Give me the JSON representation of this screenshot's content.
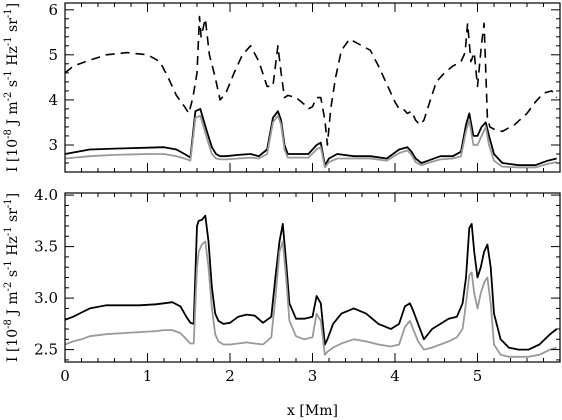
{
  "chart_data": [
    {
      "type": "line",
      "panel": "top",
      "xlabel": "",
      "ylabel": "I [10^-8 J m^-2 s^-1 Hz^-1 sr^-1]",
      "xlim": [
        0,
        6
      ],
      "ylim": [
        2.4,
        6.15
      ],
      "xticks": [
        0,
        1,
        2,
        3,
        4,
        5
      ],
      "xticks_labeled": false,
      "yticks": [
        3,
        4,
        5,
        6
      ],
      "grid": false,
      "series": [
        {
          "style": "dashed",
          "color": "#000000",
          "x": [
            0.0,
            0.1,
            0.25,
            0.5,
            0.75,
            1.0,
            1.15,
            1.25,
            1.35,
            1.45,
            1.5,
            1.55,
            1.6,
            1.63,
            1.65,
            1.7,
            1.75,
            1.82,
            1.88,
            1.95,
            2.05,
            2.15,
            2.25,
            2.35,
            2.45,
            2.52,
            2.58,
            2.62,
            2.66,
            2.7,
            2.8,
            2.9,
            2.95,
            3.0,
            3.05,
            3.1,
            3.15,
            3.18,
            3.22,
            3.28,
            3.35,
            3.45,
            3.55,
            3.7,
            3.8,
            3.9,
            4.0,
            4.05,
            4.1,
            4.15,
            4.2,
            4.25,
            4.3,
            4.35,
            4.42,
            4.5,
            4.6,
            4.7,
            4.8,
            4.85,
            4.88,
            4.92,
            4.96,
            5.0,
            5.05,
            5.08,
            5.12,
            5.15,
            5.2,
            5.3,
            5.45,
            5.6,
            5.7,
            5.8,
            5.9,
            5.96
          ],
          "values": [
            4.6,
            4.75,
            4.85,
            5.0,
            5.05,
            5.0,
            4.85,
            4.5,
            4.1,
            3.85,
            3.7,
            4.05,
            4.6,
            5.85,
            5.4,
            5.8,
            5.0,
            4.5,
            4.0,
            4.15,
            4.6,
            5.0,
            5.2,
            4.85,
            4.3,
            4.3,
            5.2,
            4.6,
            4.05,
            4.1,
            4.05,
            3.9,
            3.8,
            3.85,
            4.05,
            4.05,
            3.55,
            3.0,
            3.8,
            4.5,
            5.1,
            5.35,
            5.25,
            5.1,
            4.75,
            4.35,
            3.95,
            3.8,
            3.8,
            3.7,
            3.75,
            3.55,
            3.45,
            3.55,
            3.95,
            4.4,
            4.6,
            4.75,
            4.85,
            5.05,
            5.7,
            4.85,
            5.05,
            4.3,
            5.25,
            5.7,
            3.6,
            3.4,
            3.35,
            3.3,
            3.45,
            3.7,
            3.95,
            4.15,
            4.2,
            4.05
          ]
        },
        {
          "style": "solid",
          "color": "#000000",
          "x": [
            0.0,
            0.3,
            0.6,
            1.0,
            1.2,
            1.35,
            1.45,
            1.52,
            1.58,
            1.64,
            1.72,
            1.78,
            1.83,
            1.88,
            1.95,
            2.1,
            2.25,
            2.35,
            2.45,
            2.52,
            2.58,
            2.62,
            2.66,
            2.7,
            2.8,
            2.95,
            3.05,
            3.1,
            3.15,
            3.2,
            3.3,
            3.5,
            3.7,
            3.9,
            4.05,
            4.15,
            4.2,
            4.25,
            4.32,
            4.4,
            4.55,
            4.7,
            4.8,
            4.86,
            4.9,
            4.95,
            5.0,
            5.05,
            5.1,
            5.14,
            5.2,
            5.3,
            5.5,
            5.7,
            5.85,
            5.96
          ],
          "values": [
            2.8,
            2.9,
            2.92,
            2.94,
            2.95,
            2.9,
            2.8,
            2.72,
            3.75,
            3.8,
            3.3,
            2.95,
            2.8,
            2.75,
            2.75,
            2.78,
            2.8,
            2.75,
            2.9,
            3.6,
            3.75,
            3.55,
            3.0,
            2.8,
            2.8,
            2.8,
            3.0,
            3.05,
            2.55,
            2.7,
            2.8,
            2.75,
            2.75,
            2.7,
            2.9,
            2.95,
            2.85,
            2.7,
            2.6,
            2.65,
            2.75,
            2.75,
            2.85,
            3.45,
            3.7,
            3.2,
            3.2,
            3.4,
            3.5,
            3.2,
            2.8,
            2.6,
            2.55,
            2.55,
            2.65,
            2.7
          ]
        },
        {
          "style": "solid",
          "color": "#999999",
          "x": [
            0.0,
            0.3,
            0.6,
            1.0,
            1.2,
            1.35,
            1.45,
            1.52,
            1.58,
            1.64,
            1.72,
            1.78,
            1.83,
            1.88,
            1.95,
            2.1,
            2.25,
            2.35,
            2.45,
            2.52,
            2.58,
            2.62,
            2.66,
            2.7,
            2.8,
            2.95,
            3.05,
            3.1,
            3.15,
            3.2,
            3.3,
            3.5,
            3.7,
            3.9,
            4.05,
            4.15,
            4.2,
            4.25,
            4.32,
            4.4,
            4.55,
            4.7,
            4.8,
            4.86,
            4.9,
            4.95,
            5.0,
            5.05,
            5.1,
            5.14,
            5.2,
            5.3,
            5.5,
            5.7,
            5.85,
            5.96
          ],
          "values": [
            2.7,
            2.75,
            2.78,
            2.8,
            2.8,
            2.75,
            2.7,
            2.65,
            3.6,
            3.65,
            3.15,
            2.8,
            2.7,
            2.68,
            2.68,
            2.7,
            2.72,
            2.7,
            2.8,
            3.5,
            3.65,
            3.45,
            2.9,
            2.72,
            2.72,
            2.72,
            2.9,
            2.95,
            2.5,
            2.62,
            2.7,
            2.7,
            2.7,
            2.65,
            2.82,
            2.88,
            2.78,
            2.62,
            2.55,
            2.6,
            2.68,
            2.7,
            2.75,
            3.3,
            3.55,
            3.0,
            3.0,
            3.2,
            3.4,
            3.0,
            2.65,
            2.52,
            2.5,
            2.5,
            2.58,
            2.62
          ]
        }
      ]
    },
    {
      "type": "line",
      "panel": "bottom",
      "xlabel": "x [Mm]",
      "ylabel": "I [10^-8 J m^-2 s^-1 Hz^-1 sr^-1]",
      "xlim": [
        0,
        6
      ],
      "ylim": [
        2.38,
        4.02
      ],
      "xticks": [
        0,
        1,
        2,
        3,
        4,
        5
      ],
      "xticks_labeled": true,
      "yticks": [
        2.5,
        3.0,
        3.5,
        4.0
      ],
      "grid": false,
      "series": [
        {
          "style": "solid",
          "color": "#000000",
          "x": [
            0.0,
            0.1,
            0.2,
            0.3,
            0.5,
            0.7,
            0.9,
            1.1,
            1.2,
            1.3,
            1.4,
            1.47,
            1.52,
            1.56,
            1.6,
            1.62,
            1.66,
            1.7,
            1.74,
            1.78,
            1.82,
            1.86,
            1.92,
            2.0,
            2.1,
            2.2,
            2.3,
            2.4,
            2.5,
            2.55,
            2.6,
            2.64,
            2.68,
            2.72,
            2.8,
            2.9,
            3.0,
            3.05,
            3.1,
            3.15,
            3.18,
            3.25,
            3.35,
            3.5,
            3.65,
            3.8,
            3.95,
            4.05,
            4.12,
            4.18,
            4.22,
            4.28,
            4.35,
            4.45,
            4.55,
            4.65,
            4.75,
            4.82,
            4.86,
            4.9,
            4.93,
            4.96,
            5.0,
            5.04,
            5.08,
            5.12,
            5.16,
            5.2,
            5.28,
            5.38,
            5.5,
            5.62,
            5.75,
            5.88,
            5.96
          ],
          "values": [
            2.79,
            2.82,
            2.86,
            2.9,
            2.93,
            2.93,
            2.93,
            2.94,
            2.95,
            2.96,
            2.92,
            2.82,
            2.76,
            2.75,
            3.7,
            3.75,
            3.76,
            3.8,
            3.55,
            3.1,
            2.85,
            2.78,
            2.75,
            2.76,
            2.82,
            2.84,
            2.83,
            2.76,
            2.82,
            3.2,
            3.55,
            3.72,
            3.35,
            2.95,
            2.8,
            2.8,
            2.82,
            3.02,
            2.95,
            2.55,
            2.6,
            2.75,
            2.85,
            2.9,
            2.85,
            2.75,
            2.7,
            2.75,
            2.92,
            2.95,
            2.88,
            2.75,
            2.6,
            2.7,
            2.75,
            2.8,
            2.82,
            2.95,
            3.2,
            3.68,
            3.72,
            3.45,
            3.2,
            3.3,
            3.45,
            3.52,
            3.3,
            2.85,
            2.6,
            2.52,
            2.5,
            2.5,
            2.55,
            2.65,
            2.7
          ]
        },
        {
          "style": "solid",
          "color": "#999999",
          "x": [
            0.0,
            0.1,
            0.2,
            0.3,
            0.5,
            0.7,
            0.9,
            1.1,
            1.2,
            1.3,
            1.4,
            1.47,
            1.52,
            1.56,
            1.6,
            1.62,
            1.66,
            1.7,
            1.74,
            1.78,
            1.82,
            1.86,
            1.92,
            2.0,
            2.1,
            2.2,
            2.3,
            2.4,
            2.5,
            2.55,
            2.6,
            2.64,
            2.68,
            2.72,
            2.8,
            2.9,
            3.0,
            3.05,
            3.1,
            3.15,
            3.18,
            3.25,
            3.35,
            3.5,
            3.65,
            3.8,
            3.95,
            4.05,
            4.12,
            4.18,
            4.22,
            4.28,
            4.35,
            4.45,
            4.55,
            4.65,
            4.75,
            4.82,
            4.86,
            4.9,
            4.93,
            4.96,
            5.0,
            5.04,
            5.08,
            5.12,
            5.16,
            5.2,
            5.28,
            5.38,
            5.5,
            5.62,
            5.75,
            5.88,
            5.96
          ],
          "values": [
            2.55,
            2.58,
            2.6,
            2.63,
            2.65,
            2.66,
            2.67,
            2.68,
            2.69,
            2.69,
            2.66,
            2.6,
            2.56,
            2.56,
            3.3,
            3.45,
            3.52,
            3.55,
            3.3,
            2.9,
            2.65,
            2.58,
            2.55,
            2.55,
            2.56,
            2.57,
            2.56,
            2.55,
            2.62,
            3.0,
            3.45,
            3.55,
            3.2,
            2.78,
            2.63,
            2.6,
            2.62,
            2.85,
            2.78,
            2.45,
            2.48,
            2.52,
            2.56,
            2.6,
            2.58,
            2.55,
            2.53,
            2.55,
            2.72,
            2.78,
            2.7,
            2.58,
            2.5,
            2.52,
            2.55,
            2.58,
            2.62,
            2.7,
            2.95,
            3.22,
            3.25,
            3.05,
            2.9,
            3.05,
            3.15,
            3.2,
            2.95,
            2.55,
            2.45,
            2.43,
            2.43,
            2.43,
            2.45,
            2.5,
            2.52
          ]
        }
      ]
    }
  ]
}
